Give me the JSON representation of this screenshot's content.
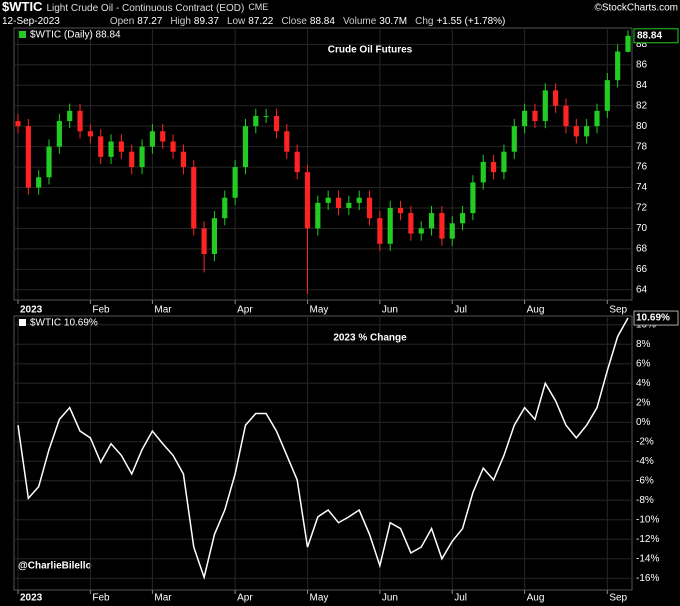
{
  "header": {
    "symbol": "$WTIC",
    "name": "Light Crude Oil - Continuous Contract (EOD)",
    "exchange": "CME",
    "source": "©StockCharts.com",
    "date": "12-Sep-2023",
    "quote": [
      {
        "label": "Open",
        "text": "87.27"
      },
      {
        "label": "High",
        "text": "89.37"
      },
      {
        "label": "Low",
        "text": "87.22"
      },
      {
        "label": "Close",
        "text": "88.84"
      },
      {
        "label": "Volume",
        "text": "30.7M"
      },
      {
        "label": "Chg",
        "text": "+1.55 (+1.78%)"
      }
    ],
    "credit": "@CharlieBilello"
  },
  "chart_data": [
    {
      "type": "candlestick",
      "title": "Crude Oil Futures",
      "legend": "$WTIC (Daily) 88.84",
      "last_label": "88.84",
      "title_color": "#22c322",
      "up_color": "#22cc22",
      "down_color": "#ff2424",
      "grid": true,
      "categories": [
        "2023",
        null,
        null,
        null,
        null,
        null,
        null,
        "Feb",
        null,
        null,
        null,
        null,
        null,
        "Mar",
        null,
        null,
        null,
        null,
        null,
        null,
        null,
        "Apr",
        null,
        null,
        null,
        null,
        null,
        null,
        "May",
        null,
        null,
        null,
        null,
        null,
        null,
        "Jun",
        null,
        null,
        null,
        null,
        null,
        null,
        "Jul",
        null,
        null,
        null,
        null,
        null,
        null,
        "Aug",
        null,
        null,
        null,
        null,
        null,
        null,
        null,
        "Sep",
        null,
        null
      ],
      "open": [
        80.5,
        80,
        74,
        75,
        78,
        80.5,
        81.5,
        79.5,
        79,
        77,
        78.5,
        77.5,
        76,
        78,
        79.5,
        78.5,
        77.5,
        76,
        70,
        67.5,
        71,
        73,
        76,
        80,
        81,
        81,
        79.5,
        77.5,
        75.5,
        70,
        72.5,
        73,
        72,
        72.5,
        73,
        71,
        68.5,
        72,
        71.5,
        69.5,
        70,
        71.5,
        69,
        70.5,
        71.5,
        74.5,
        76.5,
        75.5,
        77.5,
        80,
        81.5,
        80.5,
        83.5,
        82,
        80,
        79,
        80,
        81.5,
        84.5,
        87.27
      ],
      "high": [
        81.2,
        80.7,
        75.7,
        78.7,
        81.2,
        82.2,
        82.2,
        80.2,
        79.7,
        79.2,
        79.2,
        78.2,
        78.7,
        80.2,
        80.2,
        79.2,
        78.2,
        76.7,
        70.7,
        71.7,
        73.7,
        76.7,
        80.7,
        81.7,
        81.7,
        81.7,
        80.2,
        78.2,
        76.2,
        73.2,
        73.7,
        73.7,
        73.2,
        73.7,
        73.7,
        71.7,
        72.7,
        72.7,
        72.2,
        70.7,
        72.2,
        72.2,
        71.2,
        72.2,
        75.2,
        77.2,
        77.2,
        78.2,
        80.7,
        82.2,
        82.2,
        84.2,
        84.2,
        82.7,
        80.7,
        80.7,
        82.2,
        85.2,
        88.0,
        89.37
      ],
      "low": [
        79.3,
        73.3,
        73.3,
        74.3,
        77.3,
        79.8,
        78.8,
        78.3,
        76.3,
        76.3,
        76.8,
        75.3,
        75.3,
        77.3,
        77.8,
        76.8,
        75.3,
        69.3,
        65.7,
        66.8,
        70.3,
        72.3,
        75.3,
        79.3,
        80.3,
        78.8,
        76.8,
        74.8,
        63.6,
        69.3,
        71.8,
        71.3,
        71.3,
        71.8,
        70.3,
        67.8,
        67.8,
        70.8,
        68.8,
        68.8,
        69.3,
        68.3,
        68.3,
        69.8,
        70.8,
        73.8,
        74.8,
        74.8,
        76.8,
        79.3,
        79.8,
        79.8,
        81.3,
        79.3,
        78.3,
        78.3,
        79.3,
        80.8,
        83.8,
        87.22
      ],
      "close": [
        80,
        74,
        75,
        78,
        80.5,
        81.5,
        79.5,
        79,
        77,
        78.5,
        77.5,
        76,
        78,
        79.5,
        78.5,
        77.5,
        76,
        70,
        67.5,
        71,
        73,
        76,
        80,
        81,
        81,
        79.5,
        77.5,
        75.5,
        70,
        72.5,
        73,
        72,
        72.5,
        73,
        71,
        68.5,
        72,
        71.5,
        69.5,
        70,
        71.5,
        69,
        70.5,
        71.5,
        74.5,
        76.5,
        75.5,
        77.5,
        80,
        81.5,
        80.5,
        83.5,
        82,
        80,
        79,
        80,
        81.5,
        84.5,
        87.3,
        88.84
      ],
      "ylim": [
        63,
        89.6
      ],
      "yticks": [
        64,
        66,
        68,
        70,
        72,
        74,
        76,
        78,
        80,
        82,
        84,
        86,
        88
      ]
    },
    {
      "type": "line",
      "title": "2023 % Change",
      "legend": "$WTIC 10.69%",
      "last_label": "10.69%",
      "title_color": "#ffffff",
      "color": "#ffffff",
      "grid": true,
      "categories": [
        "2023",
        null,
        null,
        null,
        null,
        null,
        null,
        "Feb",
        null,
        null,
        null,
        null,
        null,
        "Mar",
        null,
        null,
        null,
        null,
        null,
        null,
        null,
        "Apr",
        null,
        null,
        null,
        null,
        null,
        null,
        "May",
        null,
        null,
        null,
        null,
        null,
        null,
        "Jun",
        null,
        null,
        null,
        null,
        null,
        null,
        "Jul",
        null,
        null,
        null,
        null,
        null,
        null,
        "Aug",
        null,
        null,
        null,
        null,
        null,
        null,
        null,
        "Sep",
        null,
        null
      ],
      "values": [
        -0.3,
        -7.8,
        -6.6,
        -2.8,
        0.3,
        1.5,
        -0.9,
        -1.6,
        -4.1,
        -2.2,
        -3.4,
        -5.3,
        -2.8,
        -0.9,
        -2.2,
        -3.4,
        -5.3,
        -12.8,
        -15.9,
        -11.5,
        -9.0,
        -5.3,
        -0.3,
        0.9,
        0.9,
        -0.9,
        -3.4,
        -5.9,
        -12.8,
        -9.7,
        -9.0,
        -10.3,
        -9.7,
        -9.0,
        -11.5,
        -14.7,
        -10.3,
        -10.9,
        -13.4,
        -12.8,
        -10.9,
        -14.0,
        -12.2,
        -10.9,
        -7.2,
        -4.7,
        -5.9,
        -3.4,
        -0.3,
        1.5,
        0.3,
        4.0,
        2.2,
        -0.3,
        -1.6,
        -0.3,
        1.5,
        5.3,
        8.8,
        10.69
      ],
      "ylim": [
        -17.2,
        10.9
      ],
      "yticks": [
        {
          "value": 10,
          "label": "10%"
        },
        {
          "value": 8,
          "label": "8%"
        },
        {
          "value": 6,
          "label": "6%"
        },
        {
          "value": 4,
          "label": "4%"
        },
        {
          "value": 2,
          "label": "2%"
        },
        {
          "value": 0,
          "label": "0%"
        },
        {
          "value": -2,
          "label": "-2%"
        },
        {
          "value": -4,
          "label": "-4%"
        },
        {
          "value": -6,
          "label": "-6%"
        },
        {
          "value": -8,
          "label": "-8%"
        },
        {
          "value": -10,
          "label": "-10%"
        },
        {
          "value": -12,
          "label": "-12%"
        },
        {
          "value": -14,
          "label": "-14%"
        },
        {
          "value": -16,
          "label": "-16%"
        }
      ]
    }
  ]
}
